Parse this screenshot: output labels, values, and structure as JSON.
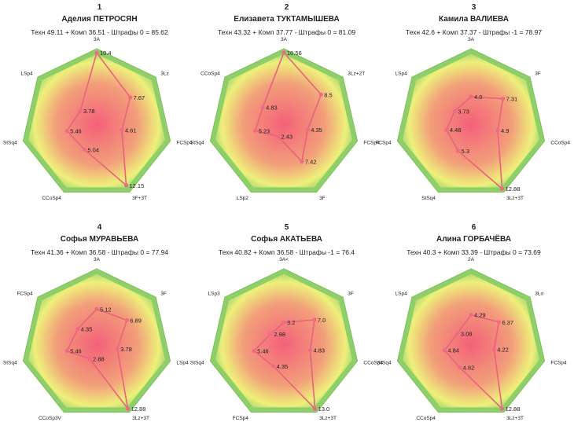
{
  "chart_data": [
    {
      "type": "radar",
      "rank": "1",
      "title": "Аделия ПЕТРОСЯН",
      "subtitle": "Техн 49.11 + Комп 36.51 - Штрафы 0 = 85.62",
      "axes": [
        "3A",
        "3Lz",
        "FCSp4",
        "3F+3T",
        "CCoSp4",
        "StSq4",
        "LSp4"
      ],
      "values": [
        10.4,
        7.67,
        4.61,
        12.15,
        5.04,
        5.46,
        3.78
      ],
      "value_labels": [
        "10.4",
        "7.67",
        "4.61",
        "12.15",
        "5.04",
        "5.46",
        "3.78"
      ]
    },
    {
      "type": "radar",
      "rank": "2",
      "title": "Елизавета ТУКТАМЫШЕВА",
      "subtitle": "Техн 43.32 + Комп 37.77 - Штрафы 0 = 81.09",
      "axes": [
        "3A",
        "3Lz+2T",
        "FCSp4",
        "3F",
        "LSp2",
        "StSq4",
        "CCoSp4"
      ],
      "values": [
        10.56,
        8.5,
        4.35,
        7.42,
        2.43,
        5.23,
        4.83
      ],
      "value_labels": [
        "10.56",
        "8.5",
        "4.35",
        "7.42",
        "2.43",
        "5.23",
        "4.83"
      ]
    },
    {
      "type": "radar",
      "rank": "3",
      "title": "Камила ВАЛИЕВА",
      "subtitle": "Техн 42.6 + Комп 37.37 - Штрафы -1 = 78.97",
      "axes": [
        "3A",
        "3F",
        "CCoSp4",
        "3Lz+3T",
        "StSq4",
        "FCSp4",
        "LSp4"
      ],
      "values": [
        4.0,
        7.31,
        4.9,
        12.88,
        5.3,
        4.48,
        3.73
      ],
      "value_labels": [
        "4.0",
        "7.31",
        "4.9",
        "12.88",
        "5.3",
        "4.48",
        "3.73"
      ]
    },
    {
      "type": "radar",
      "rank": "4",
      "title": "Софья МУРАВЬЕВА",
      "subtitle": "Техн 41.36 + Комп 36.58 - Штрафы 0 = 77.94",
      "axes": [
        "3A",
        "3F",
        "LSp4",
        "3Lz+3T",
        "CCoSp3V",
        "StSq4",
        "FCSp4"
      ],
      "values": [
        5.12,
        6.89,
        3.78,
        12.88,
        2.88,
        5.46,
        4.35
      ],
      "value_labels": [
        "5.12",
        "6.89",
        "3.78",
        "12.88",
        "2.88",
        "5.46",
        "4.35"
      ]
    },
    {
      "type": "radar",
      "rank": "5",
      "title": "Софья АКАТЬЕВА",
      "subtitle": "Техн 40.82 + Комп 36.58 - Штрафы -1 = 76.4",
      "axes": [
        "3A<",
        "3F",
        "CCoSp4",
        "3Lz+3T",
        "FCSp4",
        "StSq4",
        "LSp3"
      ],
      "values": [
        3.2,
        7.0,
        4.83,
        13.0,
        4.35,
        5.46,
        2.98
      ],
      "value_labels": [
        "3.2",
        "7.0",
        "4.83",
        "13.0",
        "4.35",
        "5.46",
        "2.98"
      ]
    },
    {
      "type": "radar",
      "rank": "6",
      "title": "Алина ГОРБАЧЁВА",
      "subtitle": "Техн 40.3 + Комп 33.39 - Штрафы 0 = 73.69",
      "axes": [
        "2A",
        "3Lo",
        "FCSp4",
        "3Lz+3T",
        "CCoSp4",
        "StSq4",
        "LSp4"
      ],
      "values": [
        4.29,
        6.37,
        4.22,
        12.88,
        4.62,
        4.84,
        3.08
      ],
      "value_labels": [
        "4.29",
        "6.37",
        "4.22",
        "12.88",
        "4.62",
        "4.84",
        "3.08"
      ]
    }
  ],
  "colors": {
    "outer_green": "#8fcf6a",
    "inner_yellow": "#eef07a",
    "center_pink": "#f4607a",
    "line": "#e8627e",
    "marker": "#f06a86"
  }
}
